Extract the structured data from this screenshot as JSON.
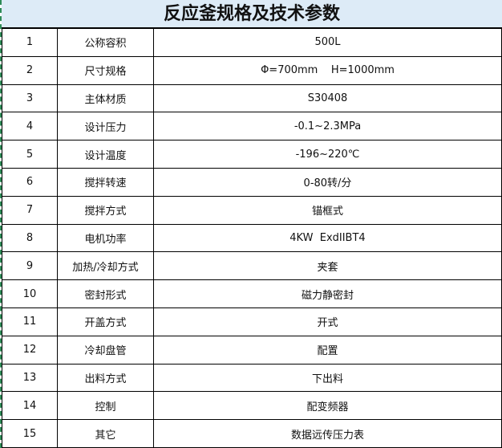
{
  "header": {
    "title": "反应釜规格及技术参数"
  },
  "table": {
    "rows": [
      [
        "1",
        "公称容积",
        "500L"
      ],
      [
        "2",
        "尺寸规格",
        "Φ=700mm    H=1000mm"
      ],
      [
        "3",
        "主体材质",
        "S30408"
      ],
      [
        "4",
        "设计压力",
        "-0.1~2.3MPa"
      ],
      [
        "5",
        "设计温度",
        "-196~220℃"
      ],
      [
        "6",
        "搅拌转速",
        "0-80转/分"
      ],
      [
        "7",
        "搅拌方式",
        "锚框式"
      ],
      [
        "8",
        "电机功率",
        "4KW  ExdIIBT4"
      ],
      [
        "9",
        "加热/冷却方式",
        "夹套"
      ],
      [
        "10",
        "密封形式",
        "磁力静密封"
      ],
      [
        "11",
        "开盖方式",
        "开式"
      ],
      [
        "12",
        "冷却盘管",
        "配置"
      ],
      [
        "13",
        "出料方式",
        "下出料"
      ],
      [
        "14",
        "控制",
        "配变频器"
      ],
      [
        "15",
        "其它",
        "数据远传压力表"
      ]
    ]
  }
}
